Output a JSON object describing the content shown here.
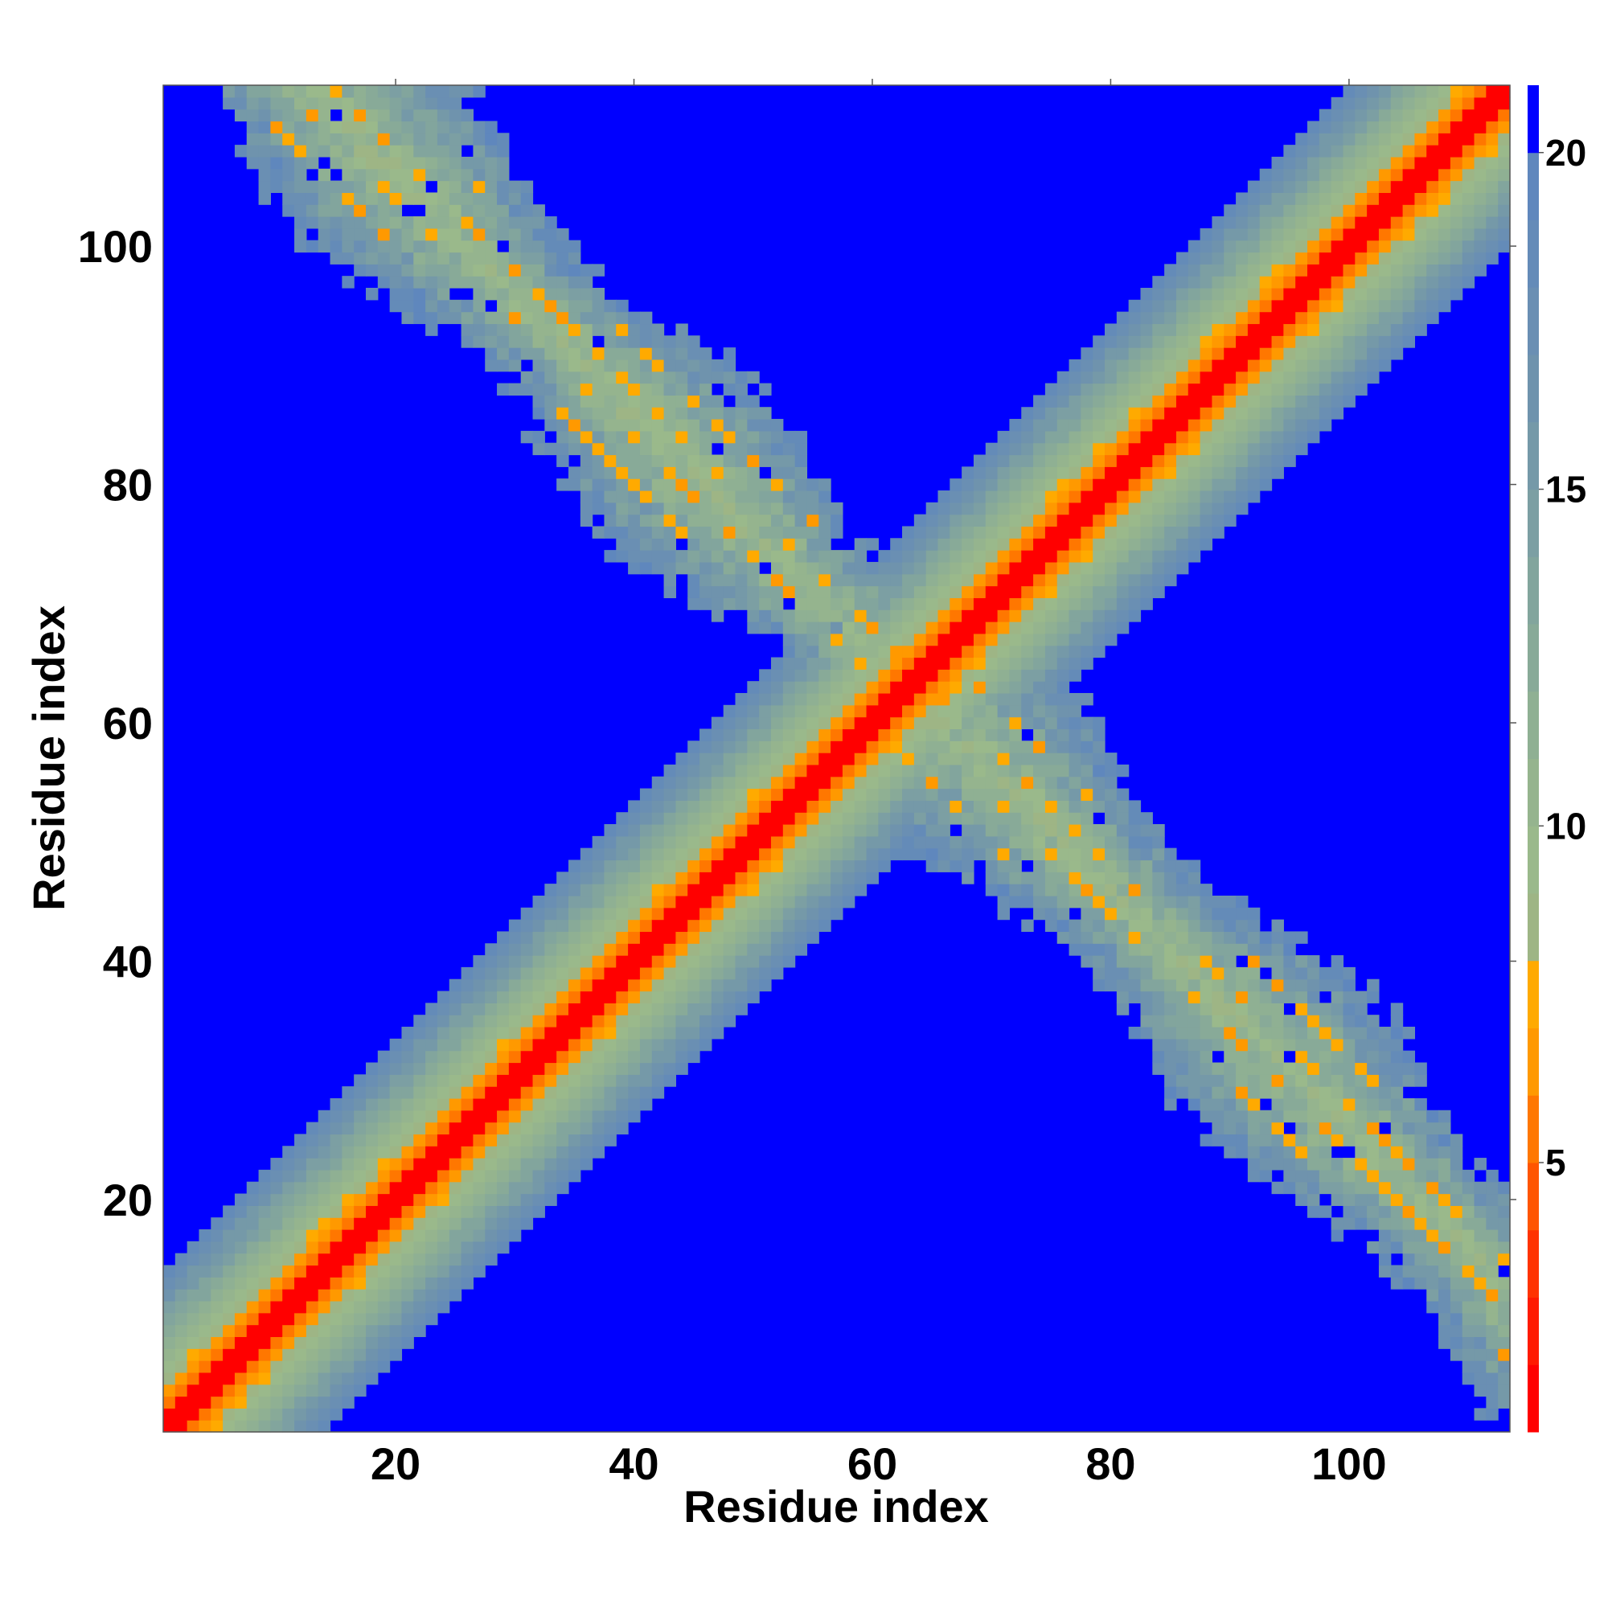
{
  "chart_data": {
    "type": "heatmap",
    "title": "",
    "xlabel": "Residue index",
    "ylabel": "Residue index",
    "n_residues": 113,
    "xlim": [
      0.5,
      113.5
    ],
    "ylim": [
      0.5,
      113.5
    ],
    "x_ticks": [
      20,
      40,
      60,
      80,
      100
    ],
    "y_ticks": [
      20,
      40,
      60,
      80,
      100
    ],
    "grid": false,
    "legend": "colorbar-right",
    "colorbar": {
      "range": [
        1,
        21
      ],
      "ticks": [
        5,
        10,
        15,
        20
      ],
      "levels": [
        {
          "upto": 2.0,
          "color": "#ff0000"
        },
        {
          "upto": 3.0,
          "color": "#ff1a00"
        },
        {
          "upto": 4.0,
          "color": "#ff3300"
        },
        {
          "upto": 5.0,
          "color": "#ff5500"
        },
        {
          "upto": 6.0,
          "color": "#ff7700"
        },
        {
          "upto": 7.0,
          "color": "#ff9900"
        },
        {
          "upto": 8.0,
          "color": "#ffaa00"
        },
        {
          "upto": 9.0,
          "color": "#9eb585"
        },
        {
          "upto": 10.0,
          "color": "#9ab98b"
        },
        {
          "upto": 11.0,
          "color": "#95b48e"
        },
        {
          "upto": 12.0,
          "color": "#8fb093"
        },
        {
          "upto": 13.0,
          "color": "#88aa98"
        },
        {
          "upto": 14.0,
          "color": "#82a59d"
        },
        {
          "upto": 15.0,
          "color": "#7c9fa3"
        },
        {
          "upto": 16.0,
          "color": "#7599a8"
        },
        {
          "upto": 17.0,
          "color": "#6f93ad"
        },
        {
          "upto": 18.0,
          "color": "#6a8fb3"
        },
        {
          "upto": 19.0,
          "color": "#648bb8"
        },
        {
          "upto": 20.0,
          "color": "#5f87bd"
        },
        {
          "upto": 21.0,
          "color": "#0000ff"
        }
      ]
    },
    "background_color": "#0000ff",
    "structure": {
      "main_diagonal": {
        "x_start": 1,
        "y_start": 1,
        "x_end": 113,
        "y_end": 113
      },
      "antidiagonal_contacts": {
        "x_start": 13,
        "y_start": 113,
        "x_end": 113,
        "y_end": 13,
        "center": [
          69,
          69
        ]
      }
    }
  }
}
